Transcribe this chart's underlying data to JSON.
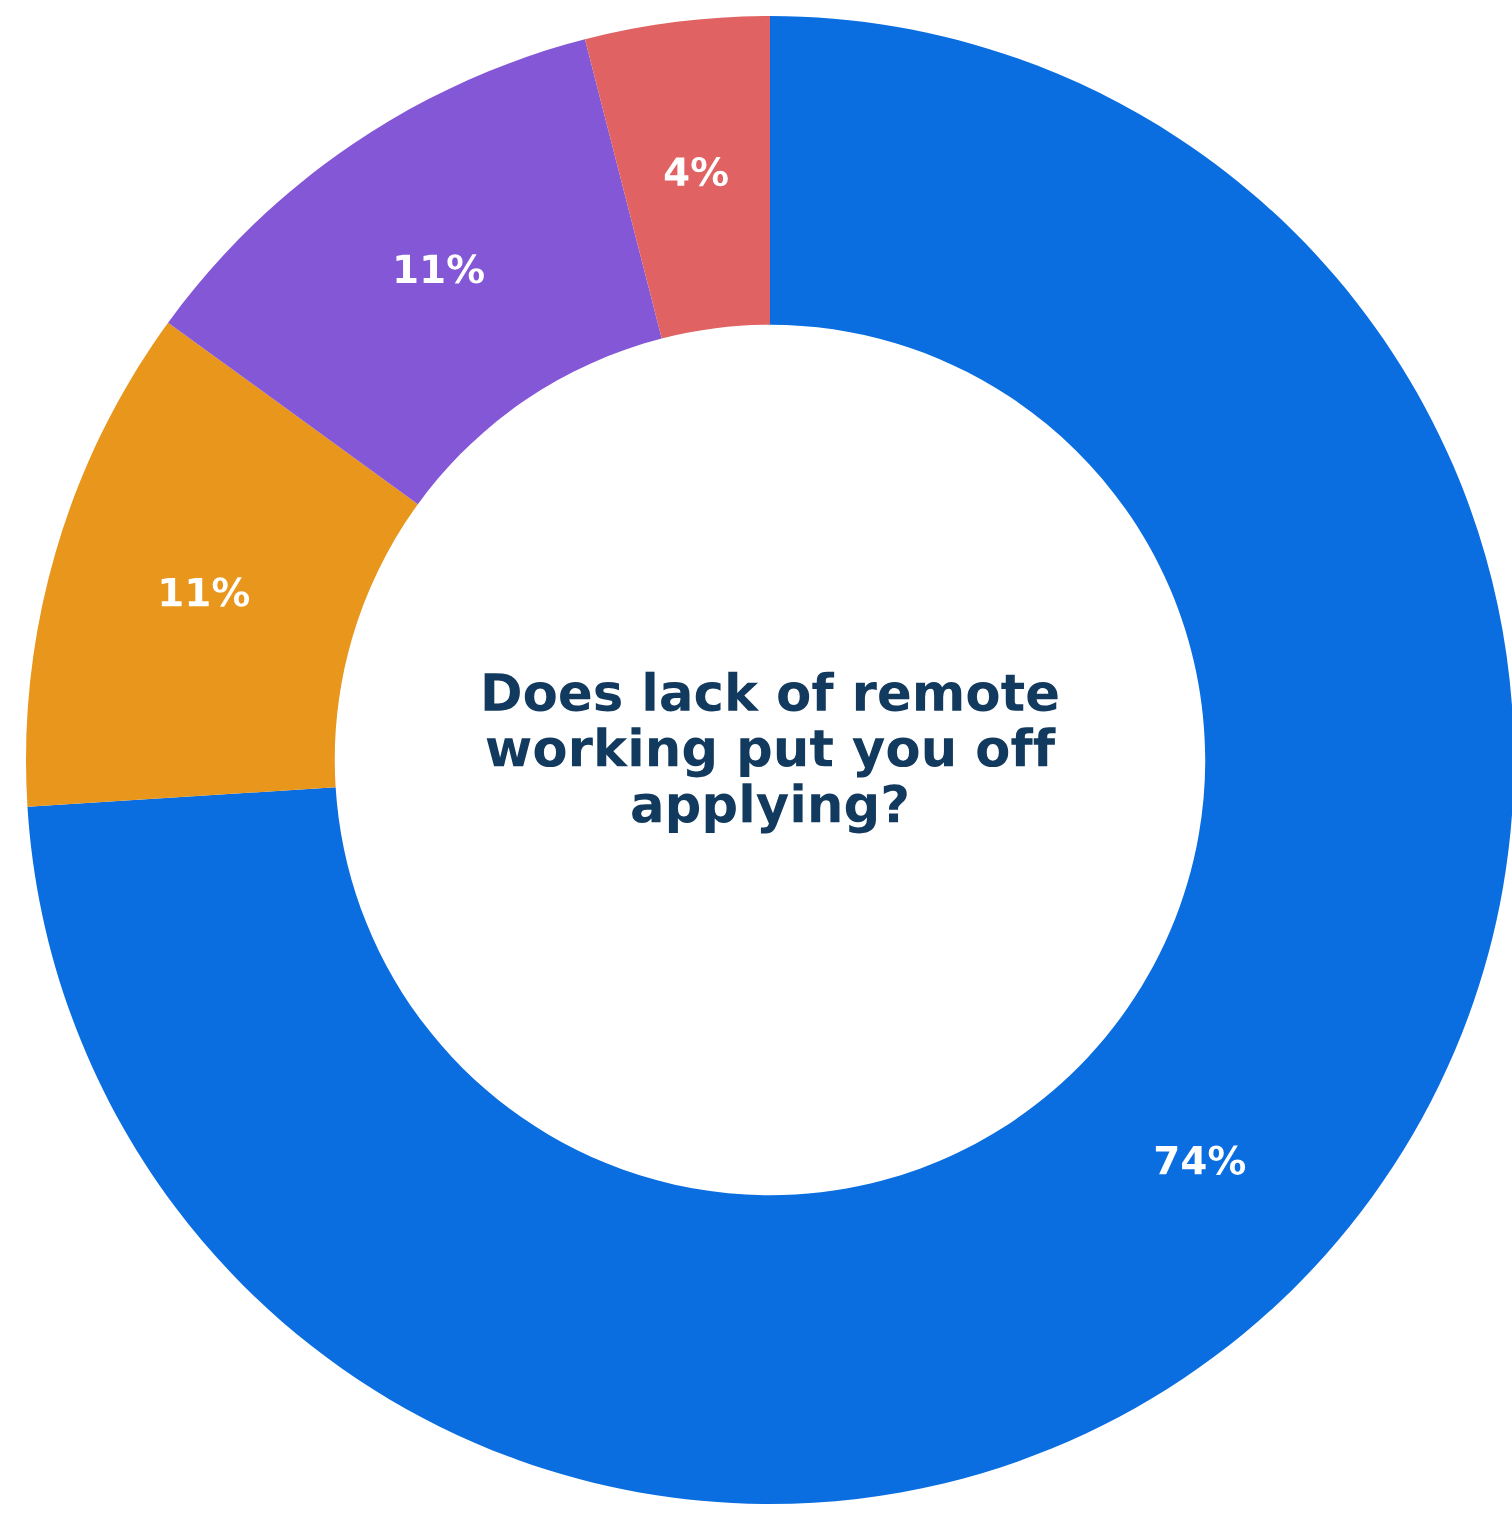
{
  "chart_data": {
    "type": "donut",
    "title": "Does lack of remote\nworking put you off\napplying?",
    "categories": [
      null,
      null,
      null,
      null
    ],
    "values": [
      74,
      11,
      11,
      4
    ],
    "colors": [
      "#0a6ee0",
      "#e8961c",
      "#8457d6",
      "#e06262"
    ],
    "value_labels": [
      "74%",
      "11%",
      "11%",
      "4%"
    ]
  }
}
